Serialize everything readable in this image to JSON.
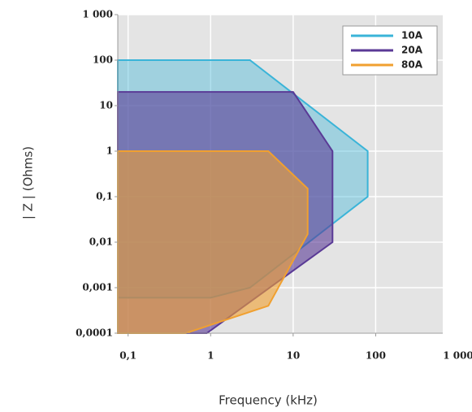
{
  "chart_data": {
    "type": "area",
    "x_label": "Frequency (kHz)",
    "y_label": "| Z | (Ohms)",
    "log_x": true,
    "log_y": true,
    "grid": true,
    "legend": "upper right",
    "xlim": [
      0.075,
      650
    ],
    "ylim": [
      0.0001,
      1000
    ],
    "xticks": [
      {
        "value": 0.1,
        "label": "0,1"
      },
      1,
      10,
      100,
      {
        "value": 1000,
        "label": "1 000"
      }
    ],
    "yticks": [
      {
        "value": 0.0001,
        "label": "0,0001"
      },
      {
        "value": 0.001,
        "label": "0,001"
      },
      {
        "value": 0.01,
        "label": "0,01"
      },
      {
        "value": 0.1,
        "label": "0,1"
      },
      1,
      10,
      100,
      {
        "value": 1000,
        "label": "1 000"
      }
    ],
    "series": [
      {
        "name": "10A",
        "color": "#3ab4d8",
        "x": [
          0.075,
          3,
          80,
          80,
          3,
          1,
          0.075
        ],
        "values": [
          100,
          100,
          1,
          0.1,
          0.001,
          0.0006,
          0.0006
        ]
      },
      {
        "name": "20A",
        "color": "#5a3a96",
        "x": [
          0.075,
          10,
          30,
          30,
          0.9,
          0.075
        ],
        "values": [
          20,
          20,
          1,
          0.01,
          0.0001,
          0.0001
        ]
      },
      {
        "name": "80A",
        "color": "#f0a030",
        "x": [
          0.075,
          5,
          15,
          15,
          5,
          0.5,
          0.075
        ],
        "values": [
          1,
          1,
          0.15,
          0.015,
          0.0004,
          0.0001,
          0.0001
        ]
      }
    ]
  }
}
